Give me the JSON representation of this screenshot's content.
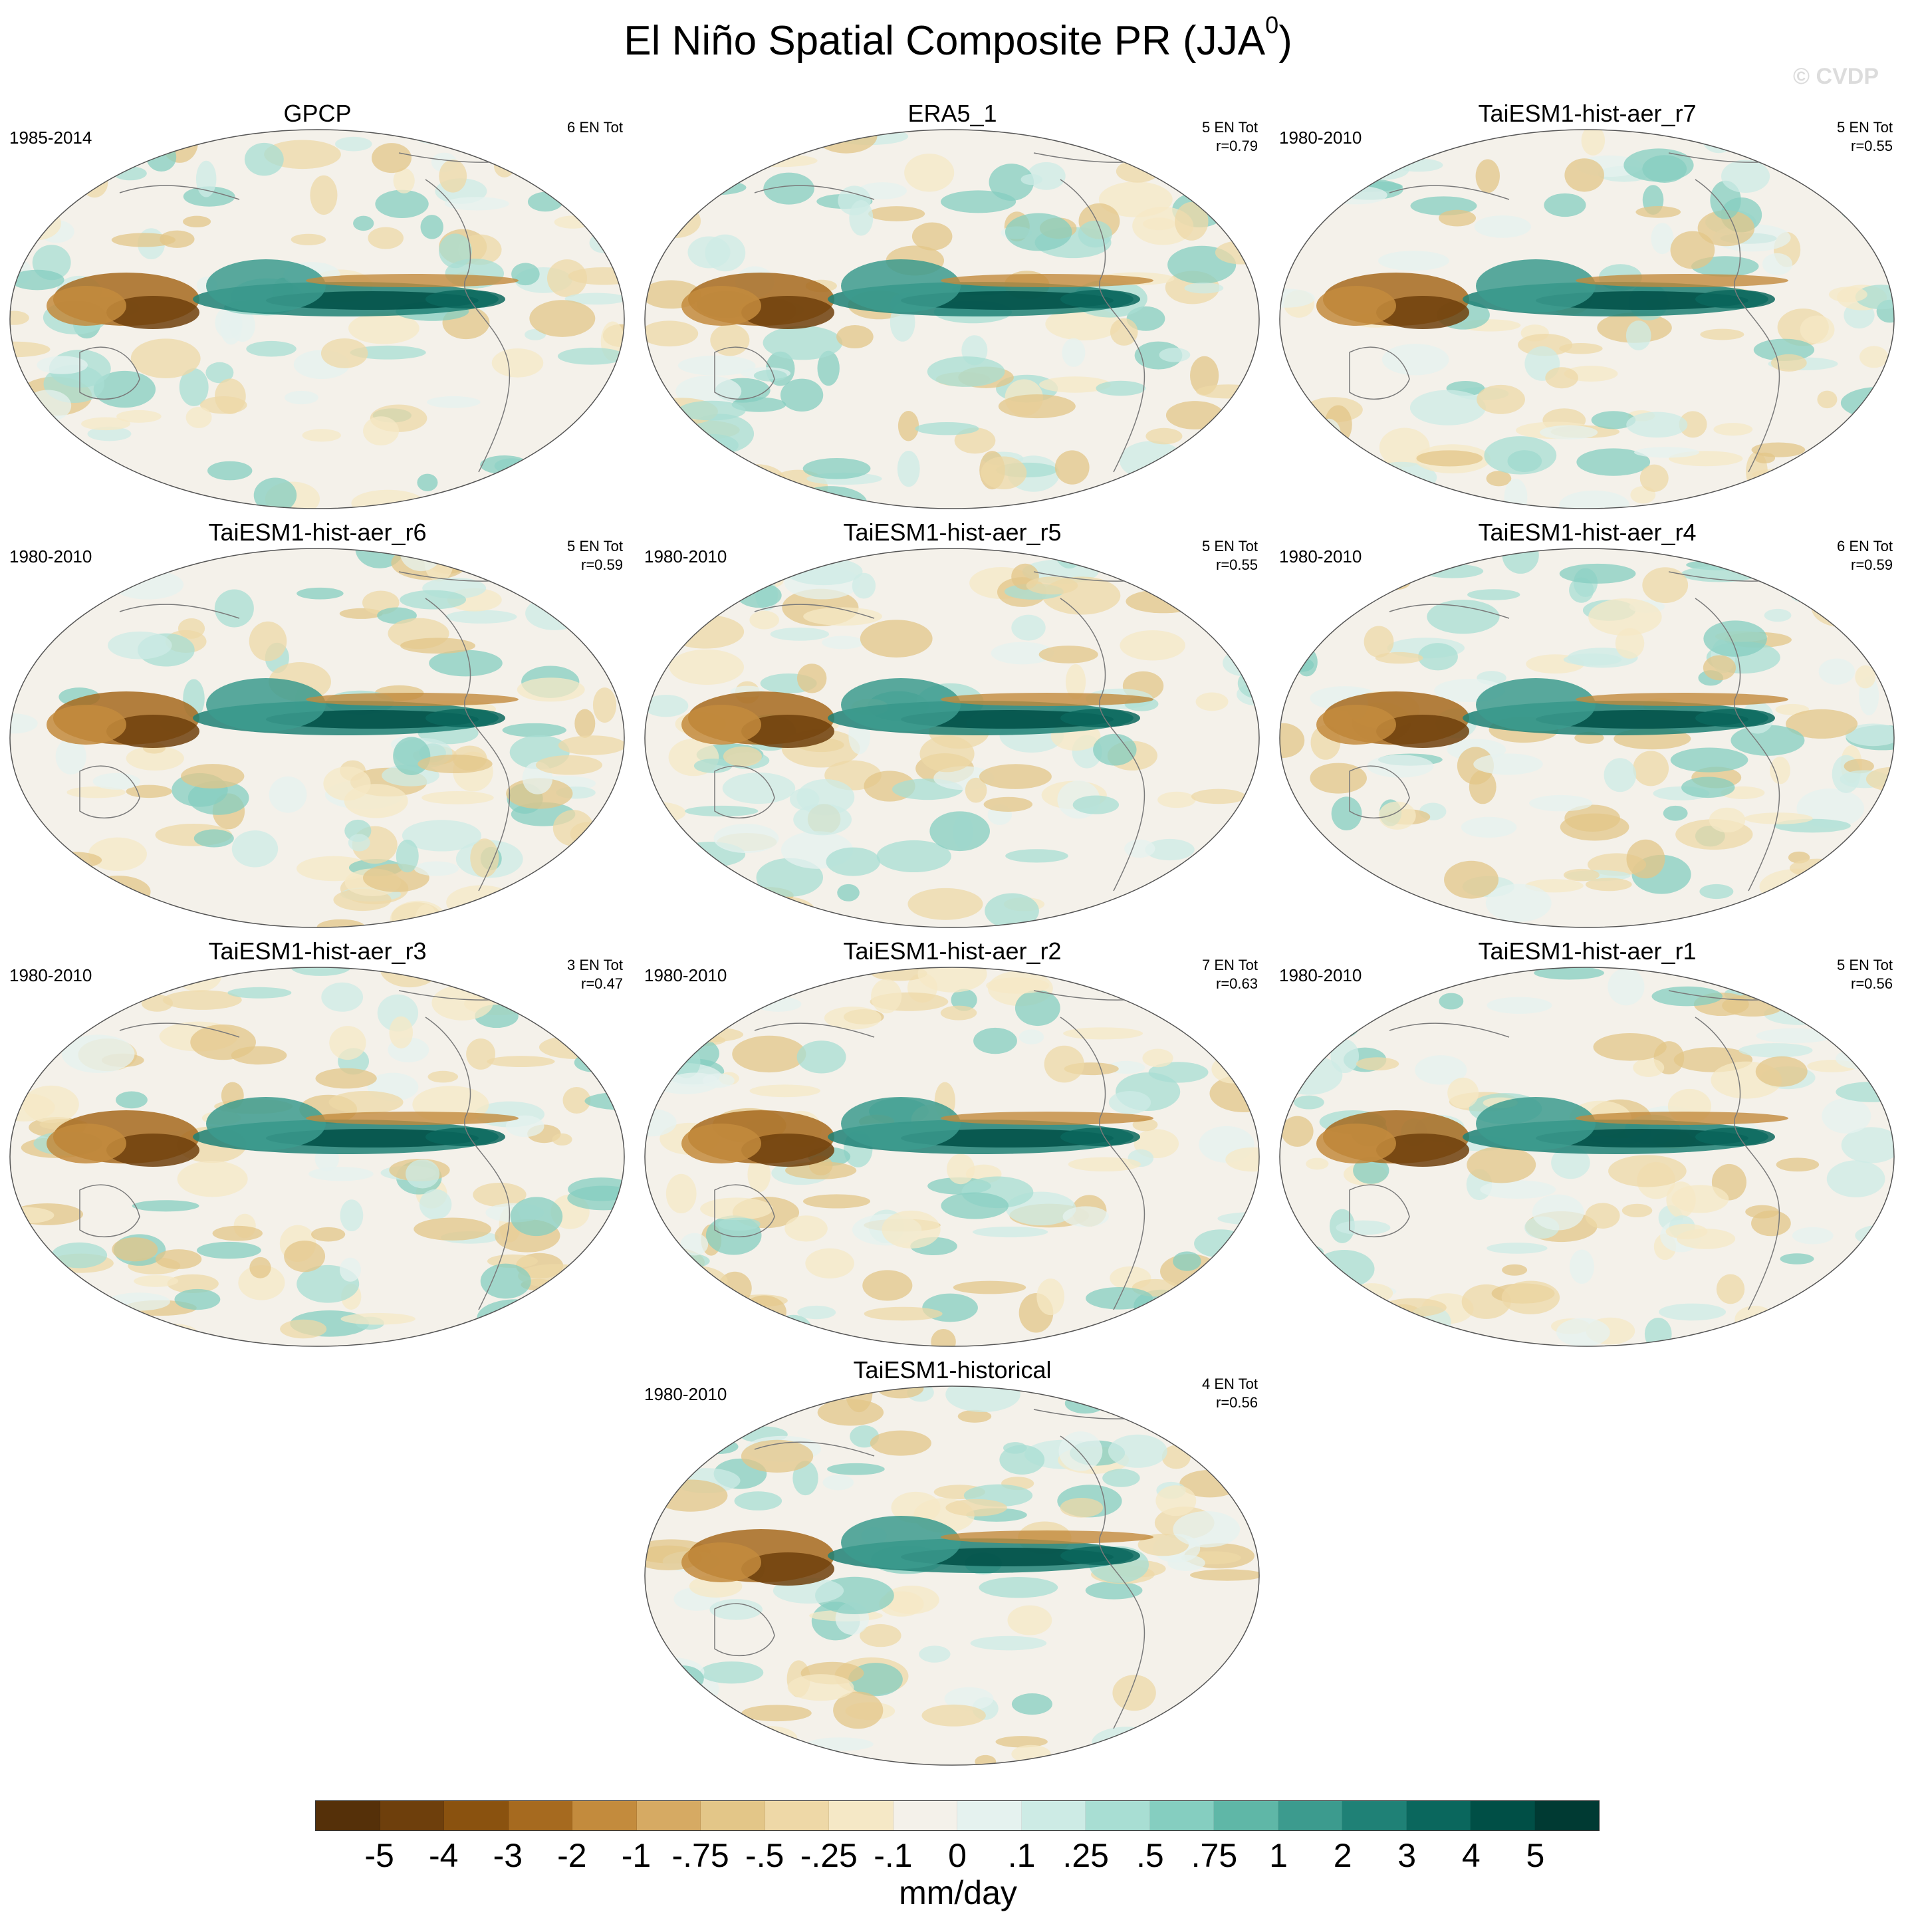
{
  "figure": {
    "title_main": "El Niño Spatial Composite PR (JJA",
    "title_sup": "0",
    "title_end": ")",
    "watermark": "© CVDP"
  },
  "panels": [
    {
      "title": "GPCP",
      "years": "1985-2014",
      "stat1": "6 EN Tot",
      "stat2": ""
    },
    {
      "title": "ERA5_1",
      "years": "",
      "stat1": "5 EN Tot",
      "stat2": "r=0.79"
    },
    {
      "title": "TaiESM1-hist-aer_r7",
      "years": "1980-2010",
      "stat1": "5 EN Tot",
      "stat2": "r=0.55"
    },
    {
      "title": "TaiESM1-hist-aer_r6",
      "years": "1980-2010",
      "stat1": "5 EN Tot",
      "stat2": "r=0.59"
    },
    {
      "title": "TaiESM1-hist-aer_r5",
      "years": "1980-2010",
      "stat1": "5 EN Tot",
      "stat2": "r=0.55"
    },
    {
      "title": "TaiESM1-hist-aer_r4",
      "years": "1980-2010",
      "stat1": "6 EN Tot",
      "stat2": "r=0.59"
    },
    {
      "title": "TaiESM1-hist-aer_r3",
      "years": "1980-2010",
      "stat1": "3 EN Tot",
      "stat2": "r=0.47"
    },
    {
      "title": "TaiESM1-hist-aer_r2",
      "years": "1980-2010",
      "stat1": "7 EN Tot",
      "stat2": "r=0.63"
    },
    {
      "title": "TaiESM1-hist-aer_r1",
      "years": "1980-2010",
      "stat1": "5 EN Tot",
      "stat2": "r=0.56"
    },
    {
      "title": "TaiESM1-historical",
      "years": "1980-2010",
      "stat1": "4 EN Tot",
      "stat2": "r=0.56"
    }
  ],
  "colorbar": {
    "colors": [
      "#553009",
      "#6e3f0c",
      "#8a520f",
      "#a66a1f",
      "#c38b3d",
      "#d6aa63",
      "#e3c688",
      "#eed8a7",
      "#f5e8c6",
      "#f4f1ea",
      "#e5f2ef",
      "#cdebe5",
      "#a8ded3",
      "#85cec0",
      "#5fb7a7",
      "#3c9b8e",
      "#1f8176",
      "#0a675d",
      "#004f46",
      "#003a33"
    ],
    "tick_labels": [
      "-5",
      "-4",
      "-3",
      "-2",
      "-1",
      "-.75",
      "-.5",
      "-.25",
      "-.1",
      "0",
      ".1",
      ".25",
      ".5",
      ".75",
      "1",
      "2",
      "3",
      "4",
      "5"
    ],
    "units": "mm/day"
  }
}
